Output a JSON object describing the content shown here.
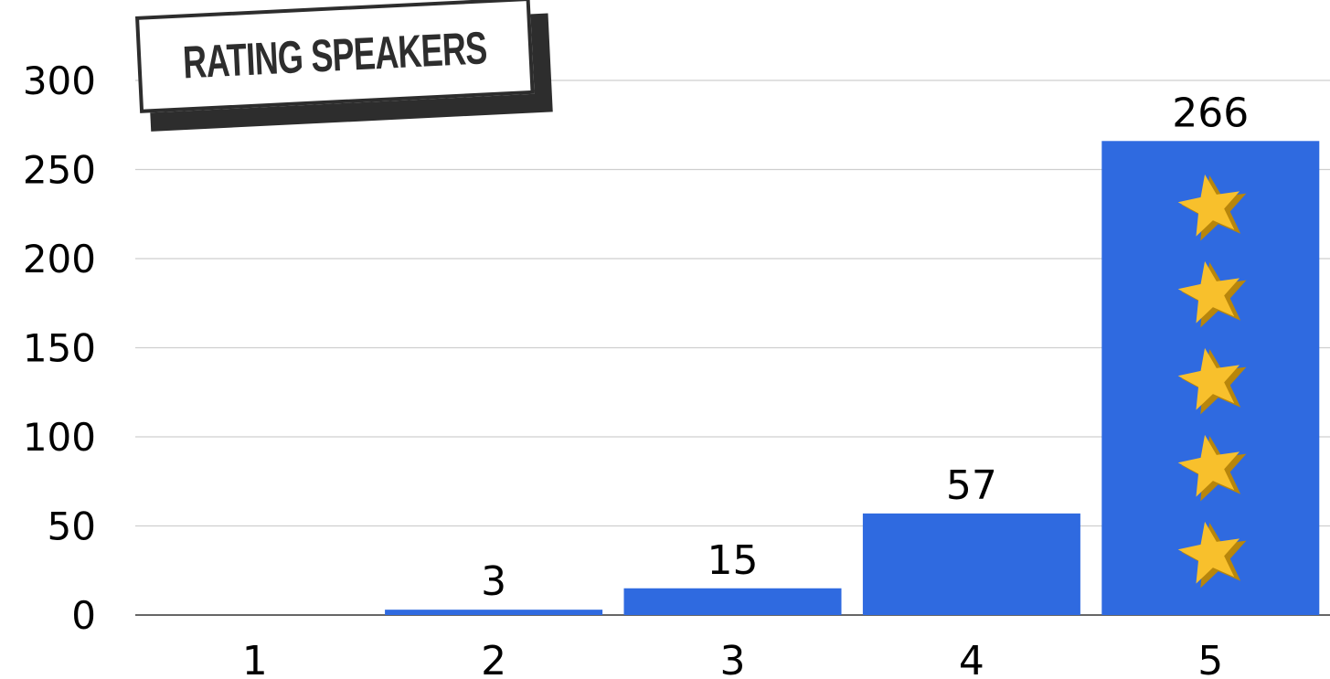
{
  "chart_data": {
    "type": "bar",
    "title": "RATING SPEAKERS",
    "categories": [
      "1",
      "2",
      "3",
      "4",
      "5"
    ],
    "values": [
      0,
      3,
      15,
      57,
      266
    ],
    "data_labels": [
      "",
      "3",
      "15",
      "57",
      "266"
    ],
    "ylim": [
      0,
      300
    ],
    "yticks": [
      "0",
      "50",
      "100",
      "150",
      "200",
      "250",
      "300"
    ],
    "xlabel": "",
    "ylabel": "",
    "grid": true,
    "legend": "none",
    "bar_color": "#2f6ae0",
    "grid_color": "#cfcfcf",
    "decoration_icon": "star-icon",
    "decoration_count": 5
  },
  "colors": {
    "bar": "#2f6ae0",
    "star": "#f8c02c",
    "star_shadow": "#b8860b",
    "title_ink": "#2d2d2d",
    "text": "#000000"
  }
}
